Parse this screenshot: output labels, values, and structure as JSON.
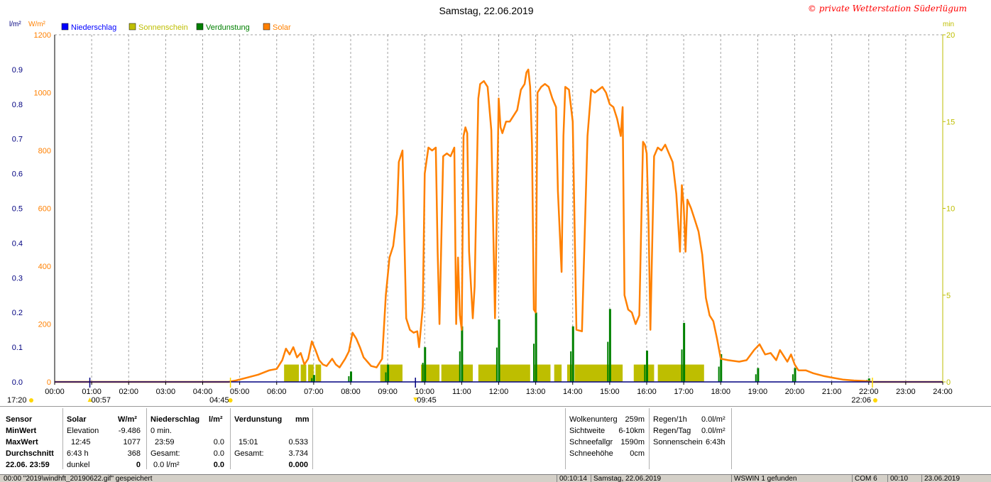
{
  "header": {
    "title": "Samstag, 22.06.2019",
    "copyright": "© private Wetterstation Süderlügum",
    "left_units": [
      "l/m²",
      "W/m²"
    ],
    "right_unit": "min"
  },
  "legend": [
    {
      "label": "Niederschlag",
      "color": "#0000ff"
    },
    {
      "label": "Sonnenschein",
      "color": "#bebe00"
    },
    {
      "label": "Verdunstung",
      "color": "#008000"
    },
    {
      "label": "Solar",
      "color": "#ff8000"
    }
  ],
  "chart_data": {
    "type": "line",
    "x_range_hours": [
      0,
      24
    ],
    "x_ticks": [
      "00:00",
      "01:00",
      "02:00",
      "03:00",
      "04:00",
      "05:00",
      "06:00",
      "07:00",
      "08:00",
      "09:00",
      "10:00",
      "11:00",
      "12:00",
      "13:00",
      "14:00",
      "15:00",
      "16:00",
      "17:00",
      "18:00",
      "19:00",
      "20:00",
      "21:00",
      "22:00",
      "23:00",
      "24:00"
    ],
    "axes": {
      "precip_lm2": {
        "range": [
          0,
          1.0
        ],
        "ticks": [
          "0.0",
          "0.1",
          "0.2",
          "0.3",
          "0.4",
          "0.5",
          "0.6",
          "0.7",
          "0.8",
          "0.9"
        ],
        "color": "#000080"
      },
      "solar_wm2": {
        "range": [
          0,
          1200
        ],
        "ticks": [
          "0",
          "200",
          "400",
          "600",
          "800",
          "1000",
          "1200"
        ],
        "color": "#ff8000"
      },
      "sunshine_min": {
        "range": [
          0,
          20
        ],
        "ticks": [
          "0",
          "5",
          "10",
          "15",
          "20"
        ],
        "color": "#bebe00"
      }
    },
    "grid": true,
    "events": {
      "bottom_left": "17:20",
      "sunrise": "04:45",
      "sunset": "22:06",
      "min_elevation_time": "00:57",
      "marker_0945": "09:45"
    },
    "solar_series": {
      "name": "Solar",
      "points": [
        [
          0,
          0
        ],
        [
          4.7,
          0
        ],
        [
          4.9,
          5
        ],
        [
          5.2,
          15
        ],
        [
          5.5,
          25
        ],
        [
          5.8,
          40
        ],
        [
          6.0,
          45
        ],
        [
          6.15,
          75
        ],
        [
          6.25,
          115
        ],
        [
          6.35,
          95
        ],
        [
          6.45,
          120
        ],
        [
          6.55,
          85
        ],
        [
          6.65,
          100
        ],
        [
          6.75,
          60
        ],
        [
          6.85,
          80
        ],
        [
          6.95,
          140
        ],
        [
          7.05,
          110
        ],
        [
          7.15,
          75
        ],
        [
          7.25,
          60
        ],
        [
          7.35,
          55
        ],
        [
          7.5,
          80
        ],
        [
          7.6,
          60
        ],
        [
          7.7,
          50
        ],
        [
          7.85,
          80
        ],
        [
          7.95,
          105
        ],
        [
          8.05,
          170
        ],
        [
          8.15,
          150
        ],
        [
          8.25,
          120
        ],
        [
          8.35,
          85
        ],
        [
          8.45,
          70
        ],
        [
          8.55,
          55
        ],
        [
          8.7,
          50
        ],
        [
          8.85,
          80
        ],
        [
          8.95,
          300
        ],
        [
          9.05,
          430
        ],
        [
          9.15,
          470
        ],
        [
          9.25,
          580
        ],
        [
          9.3,
          760
        ],
        [
          9.4,
          800
        ],
        [
          9.45,
          500
        ],
        [
          9.5,
          220
        ],
        [
          9.6,
          180
        ],
        [
          9.7,
          170
        ],
        [
          9.8,
          175
        ],
        [
          9.85,
          120
        ],
        [
          9.95,
          260
        ],
        [
          10.0,
          720
        ],
        [
          10.1,
          810
        ],
        [
          10.2,
          800
        ],
        [
          10.3,
          810
        ],
        [
          10.35,
          450
        ],
        [
          10.4,
          200
        ],
        [
          10.5,
          780
        ],
        [
          10.6,
          790
        ],
        [
          10.7,
          780
        ],
        [
          10.8,
          810
        ],
        [
          10.85,
          200
        ],
        [
          10.9,
          430
        ],
        [
          10.95,
          230
        ],
        [
          11.0,
          180
        ],
        [
          11.05,
          850
        ],
        [
          11.1,
          880
        ],
        [
          11.15,
          860
        ],
        [
          11.2,
          450
        ],
        [
          11.3,
          220
        ],
        [
          11.35,
          330
        ],
        [
          11.45,
          980
        ],
        [
          11.5,
          1030
        ],
        [
          11.6,
          1040
        ],
        [
          11.7,
          1020
        ],
        [
          11.8,
          870
        ],
        [
          11.9,
          220
        ],
        [
          12.0,
          980
        ],
        [
          12.05,
          880
        ],
        [
          12.1,
          860
        ],
        [
          12.2,
          900
        ],
        [
          12.3,
          900
        ],
        [
          12.4,
          920
        ],
        [
          12.5,
          940
        ],
        [
          12.6,
          1010
        ],
        [
          12.7,
          1030
        ],
        [
          12.75,
          1070
        ],
        [
          12.8,
          1080
        ],
        [
          12.85,
          1020
        ],
        [
          12.9,
          820
        ],
        [
          12.95,
          250
        ],
        [
          13.0,
          240
        ],
        [
          13.05,
          1000
        ],
        [
          13.15,
          1020
        ],
        [
          13.25,
          1030
        ],
        [
          13.35,
          1020
        ],
        [
          13.45,
          980
        ],
        [
          13.55,
          950
        ],
        [
          13.6,
          660
        ],
        [
          13.7,
          380
        ],
        [
          13.75,
          850
        ],
        [
          13.8,
          1020
        ],
        [
          13.9,
          1010
        ],
        [
          14.0,
          900
        ],
        [
          14.1,
          180
        ],
        [
          14.25,
          175
        ],
        [
          14.4,
          850
        ],
        [
          14.5,
          1010
        ],
        [
          14.6,
          1000
        ],
        [
          14.8,
          1020
        ],
        [
          14.9,
          1000
        ],
        [
          15.0,
          960
        ],
        [
          15.1,
          950
        ],
        [
          15.2,
          910
        ],
        [
          15.3,
          850
        ],
        [
          15.35,
          950
        ],
        [
          15.4,
          300
        ],
        [
          15.5,
          250
        ],
        [
          15.6,
          240
        ],
        [
          15.7,
          200
        ],
        [
          15.8,
          230
        ],
        [
          15.9,
          830
        ],
        [
          15.95,
          820
        ],
        [
          16.0,
          790
        ],
        [
          16.05,
          550
        ],
        [
          16.1,
          180
        ],
        [
          16.2,
          780
        ],
        [
          16.3,
          810
        ],
        [
          16.4,
          800
        ],
        [
          16.5,
          820
        ],
        [
          16.6,
          790
        ],
        [
          16.7,
          760
        ],
        [
          16.8,
          650
        ],
        [
          16.9,
          450
        ],
        [
          16.95,
          680
        ],
        [
          17.0,
          610
        ],
        [
          17.05,
          450
        ],
        [
          17.1,
          630
        ],
        [
          17.2,
          600
        ],
        [
          17.3,
          560
        ],
        [
          17.4,
          520
        ],
        [
          17.5,
          440
        ],
        [
          17.6,
          290
        ],
        [
          17.7,
          230
        ],
        [
          17.8,
          210
        ],
        [
          17.9,
          150
        ],
        [
          18.0,
          80
        ],
        [
          18.2,
          75
        ],
        [
          18.5,
          70
        ],
        [
          18.7,
          75
        ],
        [
          18.9,
          110
        ],
        [
          19.05,
          130
        ],
        [
          19.2,
          95
        ],
        [
          19.35,
          100
        ],
        [
          19.5,
          75
        ],
        [
          19.6,
          110
        ],
        [
          19.7,
          90
        ],
        [
          19.8,
          70
        ],
        [
          19.9,
          95
        ],
        [
          20.0,
          60
        ],
        [
          20.1,
          40
        ],
        [
          20.3,
          40
        ],
        [
          20.5,
          30
        ],
        [
          20.8,
          20
        ],
        [
          21.0,
          15
        ],
        [
          21.3,
          8
        ],
        [
          21.6,
          5
        ],
        [
          21.9,
          3
        ],
        [
          22.1,
          0
        ],
        [
          24,
          0
        ]
      ]
    },
    "sunshine_bars": [
      [
        6.2,
        6.6
      ],
      [
        6.65,
        6.8
      ],
      [
        6.85,
        7.0
      ],
      [
        7.05,
        7.2
      ],
      [
        8.8,
        9.4
      ],
      [
        9.9,
        10.4
      ],
      [
        10.45,
        10.95
      ],
      [
        11.0,
        11.3
      ],
      [
        11.45,
        11.95
      ],
      [
        12.0,
        12.85
      ],
      [
        12.95,
        13.4
      ],
      [
        13.5,
        13.7
      ],
      [
        13.85,
        14.0
      ],
      [
        14.05,
        15.35
      ],
      [
        15.65,
        16.2
      ],
      [
        16.3,
        17.55
      ]
    ],
    "evaporation_bars": [
      [
        7.0,
        0.02
      ],
      [
        8.0,
        0.03
      ],
      [
        9.0,
        0.05
      ],
      [
        10.0,
        0.1
      ],
      [
        11.0,
        0.16
      ],
      [
        12.0,
        0.18
      ],
      [
        13.0,
        0.2
      ],
      [
        14.0,
        0.16
      ],
      [
        15.0,
        0.21
      ],
      [
        16.0,
        0.09
      ],
      [
        17.0,
        0.17
      ],
      [
        18.0,
        0.08
      ],
      [
        19.0,
        0.04
      ],
      [
        20.0,
        0.04
      ],
      [
        22.0,
        0.01
      ]
    ]
  },
  "panel": {
    "sensor": {
      "head": "Sensor",
      "rows": [
        "MinWert",
        "MaxWert",
        "Durchschnitt",
        "22.06.  23:59"
      ]
    },
    "solar": {
      "head": "Solar",
      "unit": "W/m²",
      "rows": [
        [
          "Elevation",
          "-9.486"
        ],
        [
          "12:45",
          "1077"
        ],
        [
          "6:43 h",
          "368"
        ],
        [
          "dunkel",
          "0"
        ]
      ]
    },
    "niederschlag": {
      "head": "Niederschlag",
      "unit": "l/m²",
      "rows": [
        [
          "0 min.",
          ""
        ],
        [
          "23:59",
          "0.0"
        ],
        [
          "Gesamt:",
          "0.0"
        ],
        [
          "0.0 l/m²",
          "0.0"
        ]
      ]
    },
    "verdunstung": {
      "head": "Verdunstung",
      "unit": "mm",
      "rows": [
        [
          "",
          ""
        ],
        [
          "15:01",
          "0.533"
        ],
        [
          "Gesamt:",
          "3.734"
        ],
        [
          "",
          "0.000"
        ]
      ]
    },
    "extra1": {
      "rows": [
        [
          "Wolkenunterg",
          "259m"
        ],
        [
          "Sichtweite",
          "6-10km"
        ],
        [
          "Schneefallgr",
          "1590m"
        ],
        [
          "Schneehöhe",
          "0cm"
        ]
      ]
    },
    "extra2": {
      "rows": [
        [
          "Regen/1h",
          "0.0l/m²"
        ],
        [
          "Regen/Tag",
          "0.0l/m²"
        ],
        [
          "Sonnenschein",
          "6:43h"
        ]
      ]
    }
  },
  "statusbar": [
    "00:00   \"2019\\windhft_20190622.gif\" gespeichert",
    "00:10:14",
    "Samstag, 22.06.2019",
    "WSWIN 1 gefunden",
    "COM 6",
    "00:10",
    "23.06.2019"
  ]
}
